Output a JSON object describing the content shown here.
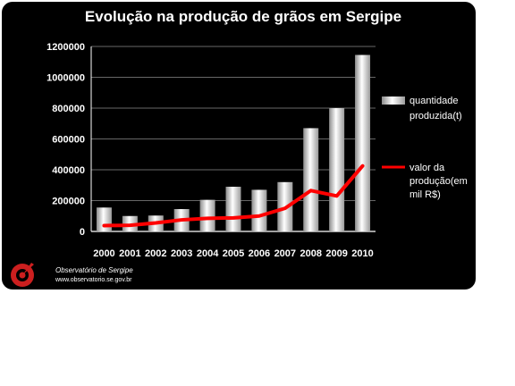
{
  "chart_data": {
    "type": "bar",
    "title": "Evolução na produção de grãos em Sergipe",
    "categories": [
      "2000",
      "2001",
      "2002",
      "2003",
      "2004",
      "2005",
      "2006",
      "2007",
      "2008",
      "2009",
      "2010"
    ],
    "ylim": [
      0,
      1200000
    ],
    "yticks": [
      "0",
      "200000",
      "400000",
      "600000",
      "800000",
      "1000000",
      "1200000"
    ],
    "grid": true,
    "legend_position": "right",
    "series": [
      {
        "name": "quantidade produzida(t)",
        "type": "bar",
        "color": "#e8e8e8",
        "values": [
          155000,
          100000,
          103000,
          145000,
          205000,
          290000,
          270000,
          320000,
          670000,
          800000,
          1145000
        ]
      },
      {
        "name": "valor da produção(em mil R$)",
        "type": "line",
        "color": "#ff0000",
        "values": [
          38000,
          40000,
          55000,
          75000,
          85000,
          88000,
          100000,
          150000,
          265000,
          230000,
          425000
        ]
      }
    ]
  },
  "legend": {
    "bar_label_lines": [
      "quantidade",
      "produzida(t)"
    ],
    "line_label_lines": [
      "valor da",
      "produção(em",
      "mil R$)"
    ]
  },
  "source": {
    "name": "Observatório de Sergipe",
    "url": "www.observatorio.se.gov.br",
    "logo_icon": "observatorio-logo-icon",
    "logo_color": "#cc1f1f"
  }
}
